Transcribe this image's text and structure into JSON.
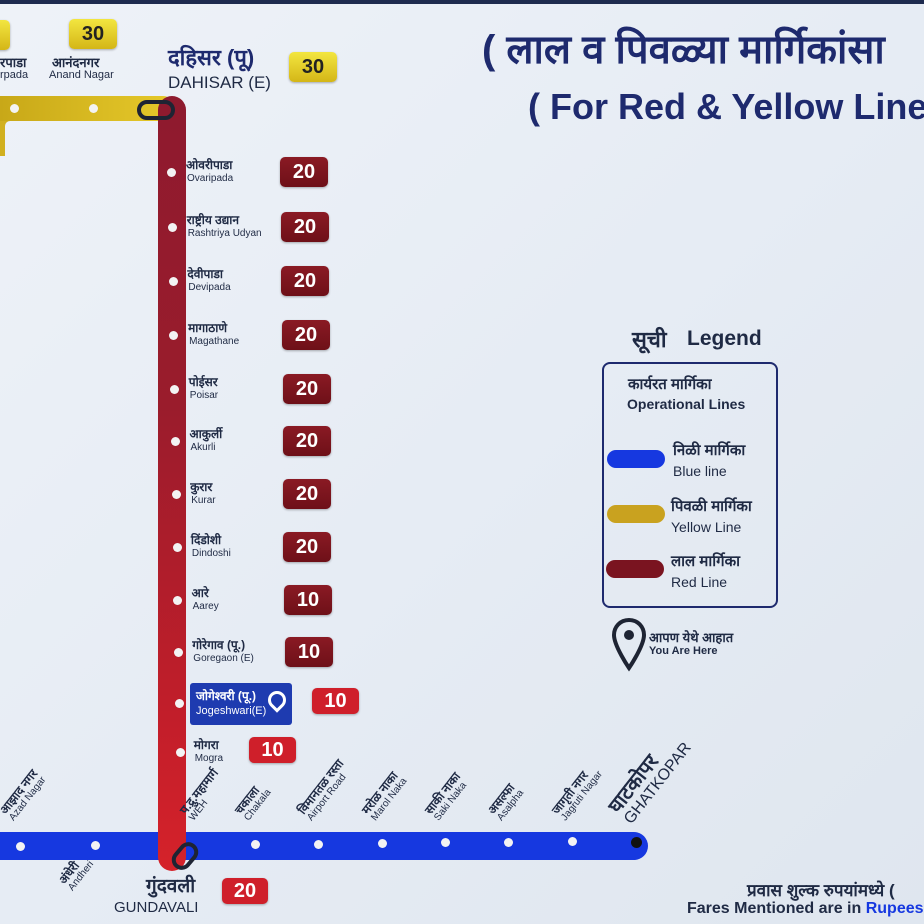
{
  "title": {
    "marathi": "( लाल व पिवळ्या मार्गिकांसा",
    "english": "( For Red & Yellow Line"
  },
  "colors": {
    "red_line": "#9a1c2c",
    "yellow_line": "#d1b01f",
    "blue_line": "#1638e0",
    "title": "#1e2a6e"
  },
  "yellow_line": {
    "stations": [
      {
        "hi": "रपाडा",
        "en": "rpada"
      },
      {
        "hi": "आनंदनगर",
        "en": "Anand Nagar",
        "fare": "30"
      }
    ],
    "interchange": {
      "hi": "दहिसर (पू)",
      "en": "DAHISAR (E)",
      "fare": "30"
    }
  },
  "red_line": {
    "stations": [
      {
        "hi": "ओवरीपाडा",
        "en": "Ovaripada",
        "fare": "20"
      },
      {
        "hi": "राष्ट्रीय उद्यान",
        "en": "Rashtriya Udyan",
        "fare": "20"
      },
      {
        "hi": "देवीपाडा",
        "en": "Devipada",
        "fare": "20"
      },
      {
        "hi": "मागाठाणे",
        "en": "Magathane",
        "fare": "20"
      },
      {
        "hi": "पोईसर",
        "en": "Poisar",
        "fare": "20"
      },
      {
        "hi": "आकुर्ली",
        "en": "Akurli",
        "fare": "20"
      },
      {
        "hi": "कुरार",
        "en": "Kurar",
        "fare": "20"
      },
      {
        "hi": "दिंडोशी",
        "en": "Dindoshi",
        "fare": "20"
      },
      {
        "hi": "आरे",
        "en": "Aarey",
        "fare": "10"
      },
      {
        "hi": "गोरेगाव (पू.)",
        "en": "Goregaon (E)",
        "fare": "10"
      },
      {
        "hi": "जोगेश्वरी (पू.)",
        "en": "Jogeshwari(E)",
        "fare": "10",
        "current": true
      },
      {
        "hi": "मोगरा",
        "en": "Mogra",
        "fare": "10"
      }
    ],
    "interchange": {
      "hi": "गुंदवली",
      "en": "GUNDAVALI",
      "fare": "20"
    }
  },
  "blue_line": {
    "stations": [
      {
        "hi": "आझाद नगर",
        "en": "Azad Nagar"
      },
      {
        "hi": "अंधेरी",
        "en": "Andheri"
      },
      {
        "hi": "प.द्रु.महामार्ग",
        "en": "WEH"
      },
      {
        "hi": "चकाला",
        "en": "Chakala"
      },
      {
        "hi": "विमानतळ रस्ता",
        "en": "Airport Road"
      },
      {
        "hi": "मरोळ नाका",
        "en": "Marol Naka"
      },
      {
        "hi": "साकी नाका",
        "en": "Saki Naka"
      },
      {
        "hi": "असल्फा",
        "en": "Asalpha"
      },
      {
        "hi": "जागृती नगर",
        "en": "Jagruti Nagar"
      },
      {
        "hi": "घाटकोपर",
        "en": "GHATKOPAR"
      }
    ]
  },
  "legend": {
    "title_hi": "सूची",
    "title_en": "Legend",
    "section_hi": "कार्यरत मार्गिका",
    "section_en": "Operational Lines",
    "items": [
      {
        "hi": "निळी मार्गिका",
        "en": "Blue line",
        "color": "#1638e0"
      },
      {
        "hi": "पिवळी मार्गिका",
        "en": "Yellow Line",
        "color": "#c9a21f"
      },
      {
        "hi": "लाल मार्गिका",
        "en": "Red Line",
        "color": "#7a1420"
      }
    ],
    "here_hi": "आपण येथे आहात",
    "here_en": "You Are Here",
    "here_icon": "location-pin-icon"
  },
  "footer": {
    "hi": "प्रवास शुल्क रुपयांमध्ये (",
    "en_a": "Fares Mentioned are in ",
    "en_b": "Rupees ("
  }
}
